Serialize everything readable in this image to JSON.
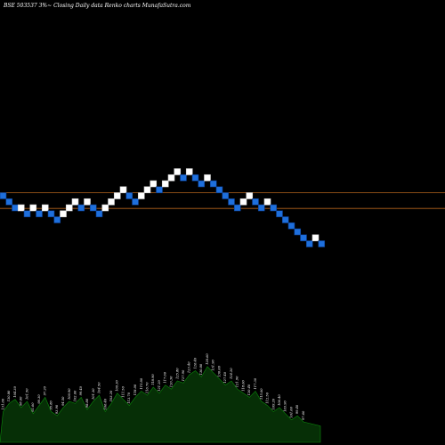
{
  "header": {
    "title": "BSE 503537 3%~ Closing Daily data Renko charts MunafaSutra.com"
  },
  "chart_data": {
    "type": "renko",
    "colors": {
      "background": "#000000",
      "up_brick": "#ffffff",
      "down_brick": "#1e6fdc",
      "down_brick_border": "#0a3a88",
      "reference_line": "#b5651d",
      "volume_fill": "#062f06",
      "volume_line": "#0b8a0b"
    },
    "grid": false,
    "brick_count": 51,
    "bricks": [
      {
        "t": "D",
        "lvl": 0
      },
      {
        "t": "D",
        "lvl": -1
      },
      {
        "t": "D",
        "lvl": -2
      },
      {
        "t": "U",
        "lvl": -2
      },
      {
        "t": "D",
        "lvl": -3
      },
      {
        "t": "U",
        "lvl": -2
      },
      {
        "t": "D",
        "lvl": -3
      },
      {
        "t": "U",
        "lvl": -2
      },
      {
        "t": "D",
        "lvl": -3
      },
      {
        "t": "D",
        "lvl": -4
      },
      {
        "t": "U",
        "lvl": -3
      },
      {
        "t": "U",
        "lvl": -2
      },
      {
        "t": "U",
        "lvl": -1
      },
      {
        "t": "D",
        "lvl": -2
      },
      {
        "t": "U",
        "lvl": -1
      },
      {
        "t": "D",
        "lvl": -2
      },
      {
        "t": "D",
        "lvl": -3
      },
      {
        "t": "U",
        "lvl": -2
      },
      {
        "t": "U",
        "lvl": -1
      },
      {
        "t": "U",
        "lvl": 0
      },
      {
        "t": "U",
        "lvl": 1
      },
      {
        "t": "D",
        "lvl": 0
      },
      {
        "t": "D",
        "lvl": -1
      },
      {
        "t": "U",
        "lvl": 0
      },
      {
        "t": "U",
        "lvl": 1
      },
      {
        "t": "U",
        "lvl": 2
      },
      {
        "t": "D",
        "lvl": 1
      },
      {
        "t": "U",
        "lvl": 2
      },
      {
        "t": "U",
        "lvl": 3
      },
      {
        "t": "U",
        "lvl": 4
      },
      {
        "t": "D",
        "lvl": 3
      },
      {
        "t": "U",
        "lvl": 4
      },
      {
        "t": "D",
        "lvl": 3
      },
      {
        "t": "D",
        "lvl": 2
      },
      {
        "t": "U",
        "lvl": 3
      },
      {
        "t": "D",
        "lvl": 2
      },
      {
        "t": "D",
        "lvl": 1
      },
      {
        "t": "D",
        "lvl": 0
      },
      {
        "t": "D",
        "lvl": -1
      },
      {
        "t": "D",
        "lvl": -2
      },
      {
        "t": "U",
        "lvl": -1
      },
      {
        "t": "U",
        "lvl": 0
      },
      {
        "t": "D",
        "lvl": -1
      },
      {
        "t": "D",
        "lvl": -2
      },
      {
        "t": "U",
        "lvl": -1
      },
      {
        "t": "D",
        "lvl": -2
      },
      {
        "t": "D",
        "lvl": -3
      },
      {
        "t": "D",
        "lvl": -4
      },
      {
        "t": "D",
        "lvl": -5
      },
      {
        "t": "D",
        "lvl": -6
      },
      {
        "t": "D",
        "lvl": -7
      }
    ],
    "tail_bricks": [
      {
        "t": "D",
        "lvl": -8
      },
      {
        "t": "U",
        "lvl": -7
      },
      {
        "t": "D",
        "lvl": -8
      }
    ],
    "reference_lines": [
      0.5,
      -2.1
    ],
    "volume": [
      30,
      38,
      42,
      34,
      40,
      28,
      36,
      44,
      30,
      26,
      34,
      40,
      38,
      44,
      32,
      40,
      46,
      30,
      38,
      48,
      42,
      36,
      44,
      50,
      46,
      54,
      48,
      56,
      52,
      60,
      58,
      66,
      70,
      64,
      74,
      68,
      62,
      56,
      60,
      52,
      48,
      44,
      50,
      40,
      36,
      30,
      34,
      28,
      22,
      26,
      20
    ],
    "volume_labels": [
      "131.00",
      "130.80",
      "104.30",
      "98.60",
      "101.50",
      "92.60",
      "90.30",
      "97.20",
      "95.80",
      "93.90",
      "94.50",
      "100.90",
      "102.60",
      "99.40",
      "98.80",
      "101.30",
      "104.50",
      "106.40",
      "103.20",
      "109.30",
      "111.50",
      "113.70",
      "118.00",
      "115.80",
      "116.70",
      "118.90",
      "121.20",
      "117.60",
      "120.30",
      "125.80",
      "127.90",
      "123.40",
      "126.40",
      "130.80",
      "128.60",
      "131.90",
      "130.00",
      "127.40",
      "124.20",
      "121.90",
      "118.60",
      "120.40",
      "117.30",
      "115.00",
      "112.50",
      "109.20",
      "106.40",
      "103.90",
      "101.60",
      "99.40",
      "97.60"
    ]
  }
}
